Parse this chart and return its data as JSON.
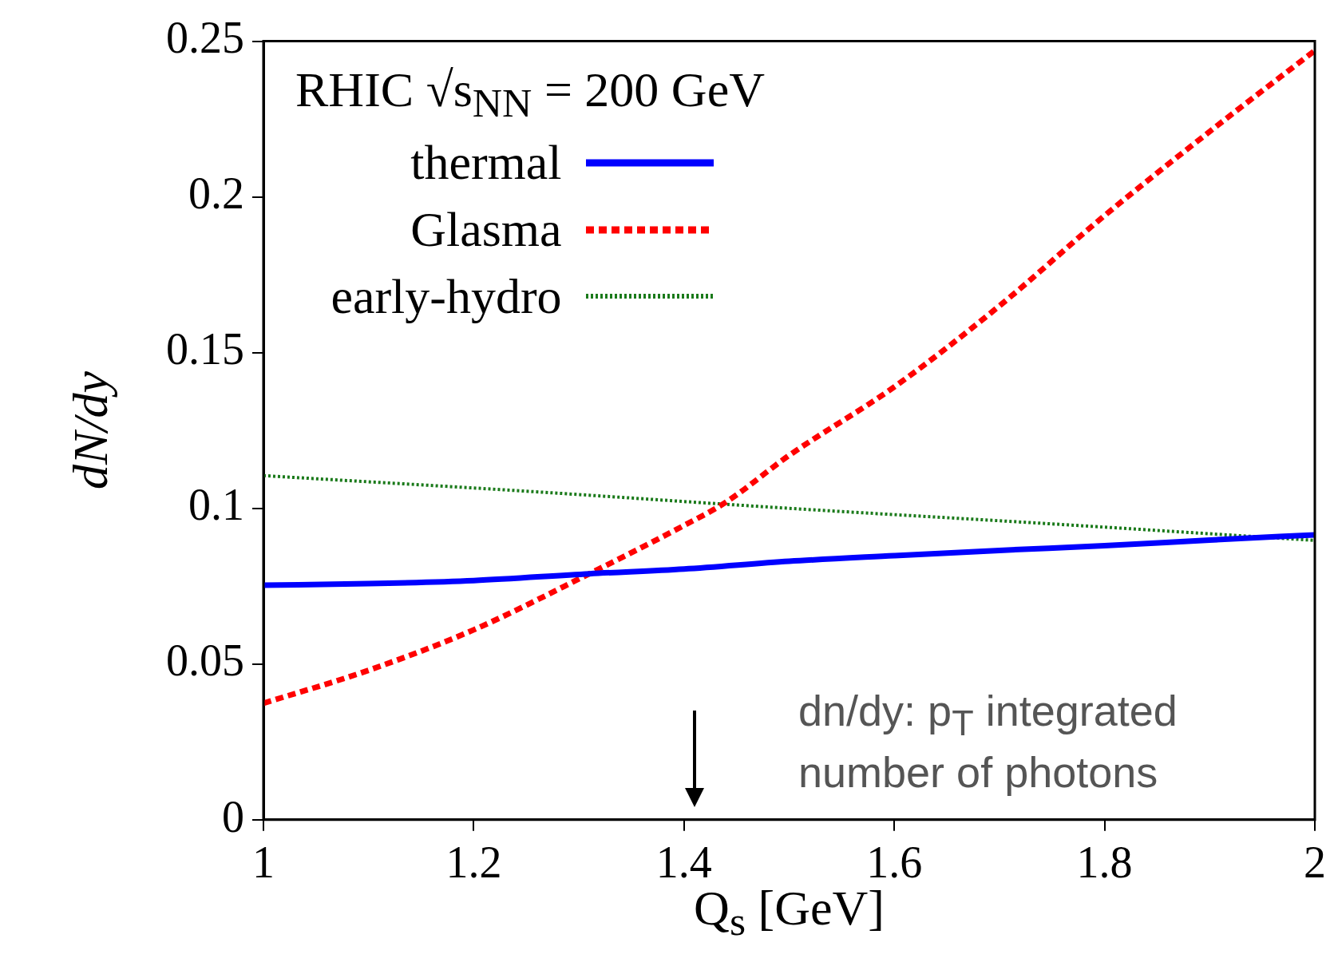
{
  "chart_data": {
    "type": "line",
    "xlabel": "Q$_{s}$ [GeV]",
    "ylabel": "dN/dy",
    "legend_title": "RHIC √s$_{NN}$ = 200 GeV",
    "legend": "top left",
    "grid": false,
    "marker": "none",
    "xlim": [
      1,
      2
    ],
    "xticks": [
      1,
      1.2,
      1.4,
      1.6,
      1.8,
      2
    ],
    "ylim": [
      0,
      0.25
    ],
    "yticks": [
      0,
      0.05,
      0.1,
      0.15,
      0.2,
      0.25
    ],
    "annotations": [
      "dn/dy: p$_{T}$ integrated number of photons"
    ],
    "series": [
      {
        "name": "thermal",
        "color": "#0000ff",
        "line_style": "solid",
        "x": [
          1,
          1.1,
          1.2,
          1.31,
          1.4,
          1.5,
          1.6,
          1.7,
          1.8,
          1.9,
          2
        ],
        "values": [
          0.0753,
          0.0758,
          0.0768,
          0.079,
          0.0805,
          0.083,
          0.0848,
          0.0865,
          0.088,
          0.0898,
          0.0915
        ]
      },
      {
        "name": "Glasma",
        "color": "#ff0000",
        "line_style": "dashed",
        "x": [
          1,
          1.1,
          1.2,
          1.31,
          1.4,
          1.44,
          1.5,
          1.6,
          1.7,
          1.8,
          1.9,
          2
        ],
        "values": [
          0.0374,
          0.048,
          0.061,
          0.079,
          0.0945,
          0.102,
          0.117,
          0.139,
          0.165,
          0.194,
          0.221,
          0.247
        ]
      },
      {
        "name": "early-hydro",
        "color": "#1a7a1a",
        "line_style": "dotted",
        "x": [
          1,
          1.25,
          1.5,
          1.75,
          2
        ],
        "values": [
          0.1105,
          0.1055,
          0.1,
          0.095,
          0.0897
        ]
      }
    ]
  }
}
